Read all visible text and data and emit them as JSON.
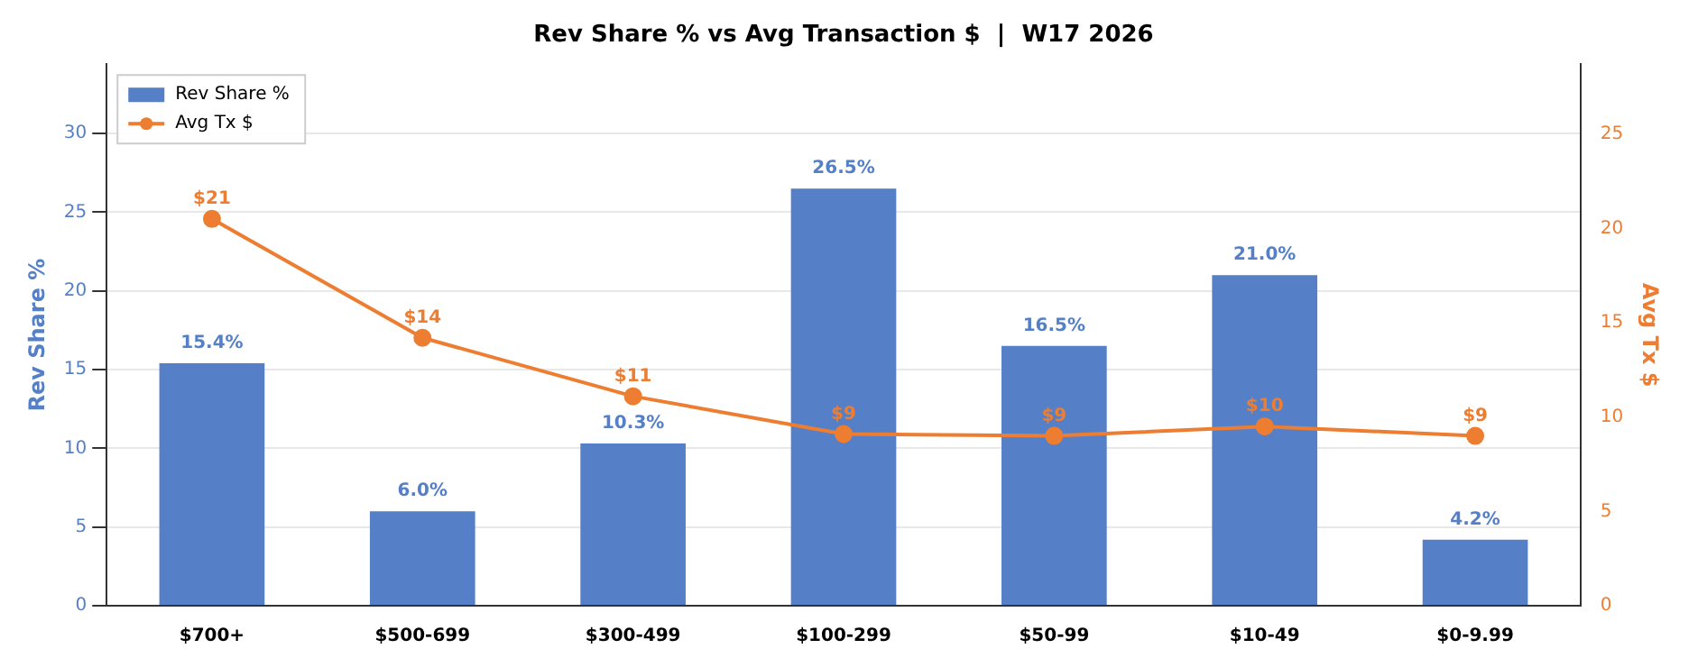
{
  "chart_data": {
    "type": "bar",
    "title": "Rev Share % vs Avg Transaction $  |  W17 2026",
    "ylabel": "Rev Share %",
    "y2label": "Avg Tx $",
    "categories": [
      "$700+",
      "$500-699",
      "$300-499",
      "$100-299",
      "$50-99",
      "$10-49",
      "$0-9.99"
    ],
    "series": [
      {
        "name": "Rev Share %",
        "color": "#5580c8",
        "values": [
          15.4,
          6.0,
          10.3,
          26.5,
          16.5,
          21.0,
          4.2
        ],
        "value_labels": [
          "15.4%",
          "6.0%",
          "10.3%",
          "26.5%",
          "16.5%",
          "21.0%",
          "4.2%"
        ]
      },
      {
        "name": "Avg Tx $",
        "type": "line",
        "axis": "y2",
        "color": "#ed7d31",
        "values": [
          20.5,
          14.2,
          11.1,
          9.1,
          9.0,
          9.5,
          9.0
        ],
        "value_labels": [
          "$21",
          "$14",
          "$11",
          "$9",
          "$9",
          "$10",
          "$9"
        ]
      }
    ],
    "ylim": [
      0,
      34.4
    ],
    "yticks": [
      0,
      5,
      10,
      15,
      20,
      25,
      30
    ],
    "y2lim": [
      0,
      28.7
    ],
    "y2ticks": [
      0,
      5,
      10,
      15,
      20,
      25
    ],
    "grid": "y",
    "legend": "top left",
    "marker": "circle",
    "line_style": "solid"
  }
}
